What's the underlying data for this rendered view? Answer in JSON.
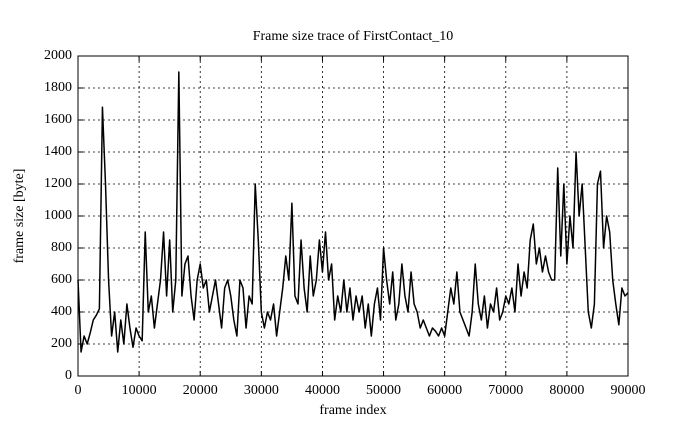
{
  "chart_data": {
    "type": "line",
    "title": "Frame size trace of FirstContact_10",
    "xlabel": "frame index",
    "ylabel": "frame size [byte]",
    "x": [
      0,
      500,
      1000,
      1500,
      2000,
      2500,
      3000,
      3500,
      4000,
      4500,
      5000,
      5500,
      6000,
      6500,
      7000,
      7500,
      8000,
      8500,
      9000,
      9500,
      10000,
      10500,
      11000,
      11500,
      12000,
      12500,
      13000,
      13500,
      14000,
      14500,
      15000,
      15500,
      16000,
      16500,
      17000,
      17500,
      18000,
      18500,
      19000,
      19500,
      20000,
      20500,
      21000,
      21500,
      22000,
      22500,
      23000,
      23500,
      24000,
      24500,
      25000,
      25500,
      26000,
      26500,
      27000,
      27500,
      28000,
      28500,
      29000,
      29500,
      30000,
      30500,
      31000,
      31500,
      32000,
      32500,
      33000,
      33500,
      34000,
      34500,
      35000,
      35500,
      36000,
      36500,
      37000,
      37500,
      38000,
      38500,
      39000,
      39500,
      40000,
      40500,
      41000,
      41500,
      42000,
      42500,
      43000,
      43500,
      44000,
      44500,
      45000,
      45500,
      46000,
      46500,
      47000,
      47500,
      48000,
      48500,
      49000,
      49500,
      50000,
      50500,
      51000,
      51500,
      52000,
      52500,
      53000,
      53500,
      54000,
      54500,
      55000,
      55500,
      56000,
      56500,
      57000,
      57500,
      58000,
      58500,
      59000,
      59500,
      60000,
      60500,
      61000,
      61500,
      62000,
      62500,
      63000,
      63500,
      64000,
      64500,
      65000,
      65500,
      66000,
      66500,
      67000,
      67500,
      68000,
      68500,
      69000,
      69500,
      70000,
      70500,
      71000,
      71500,
      72000,
      72500,
      73000,
      73500,
      74000,
      74500,
      75000,
      75500,
      76000,
      76500,
      77000,
      77500,
      78000,
      78500,
      79000,
      79500,
      80000,
      80500,
      81000,
      81500,
      82000,
      82500,
      83000,
      83500,
      84000,
      84500,
      85000,
      85500,
      86000,
      86500,
      87000,
      87500,
      88000,
      88500,
      89000,
      89500,
      90000
    ],
    "series": [
      {
        "color": "#000000",
        "values": [
          600,
          150,
          250,
          200,
          270,
          350,
          380,
          420,
          1680,
          1200,
          600,
          250,
          400,
          150,
          350,
          200,
          450,
          300,
          180,
          300,
          250,
          220,
          900,
          400,
          500,
          300,
          450,
          600,
          900,
          500,
          850,
          400,
          600,
          1900,
          500,
          700,
          750,
          500,
          350,
          600,
          700,
          550,
          600,
          400,
          500,
          600,
          450,
          300,
          550,
          600,
          500,
          350,
          250,
          600,
          550,
          300,
          500,
          450,
          1200,
          850,
          400,
          300,
          400,
          350,
          450,
          250,
          400,
          550,
          750,
          600,
          1080,
          500,
          450,
          850,
          550,
          400,
          750,
          500,
          600,
          850,
          650,
          900,
          600,
          700,
          350,
          500,
          400,
          600,
          400,
          550,
          350,
          500,
          400,
          500,
          300,
          450,
          250,
          450,
          550,
          350,
          800,
          600,
          450,
          650,
          350,
          450,
          700,
          500,
          400,
          650,
          450,
          400,
          300,
          350,
          300,
          250,
          300,
          280,
          250,
          300,
          250,
          400,
          550,
          450,
          650,
          400,
          350,
          300,
          250,
          400,
          700,
          450,
          350,
          500,
          300,
          450,
          400,
          550,
          350,
          400,
          500,
          450,
          550,
          400,
          700,
          500,
          650,
          550,
          850,
          950,
          700,
          800,
          650,
          750,
          650,
          600,
          600,
          1300,
          750,
          1200,
          700,
          1000,
          800,
          1400,
          1000,
          1200,
          800,
          400,
          300,
          450,
          1200,
          1280,
          800,
          1000,
          900,
          600,
          450,
          320,
          550,
          500,
          520
        ]
      }
    ],
    "xlim": [
      0,
      90000
    ],
    "xticks": [
      0,
      10000,
      20000,
      30000,
      40000,
      50000,
      60000,
      70000,
      80000,
      90000
    ],
    "ylim": [
      0,
      2000
    ],
    "yticks": [
      0,
      200,
      400,
      600,
      800,
      1000,
      1200,
      1400,
      1600,
      1800,
      2000
    ],
    "grid": true
  }
}
